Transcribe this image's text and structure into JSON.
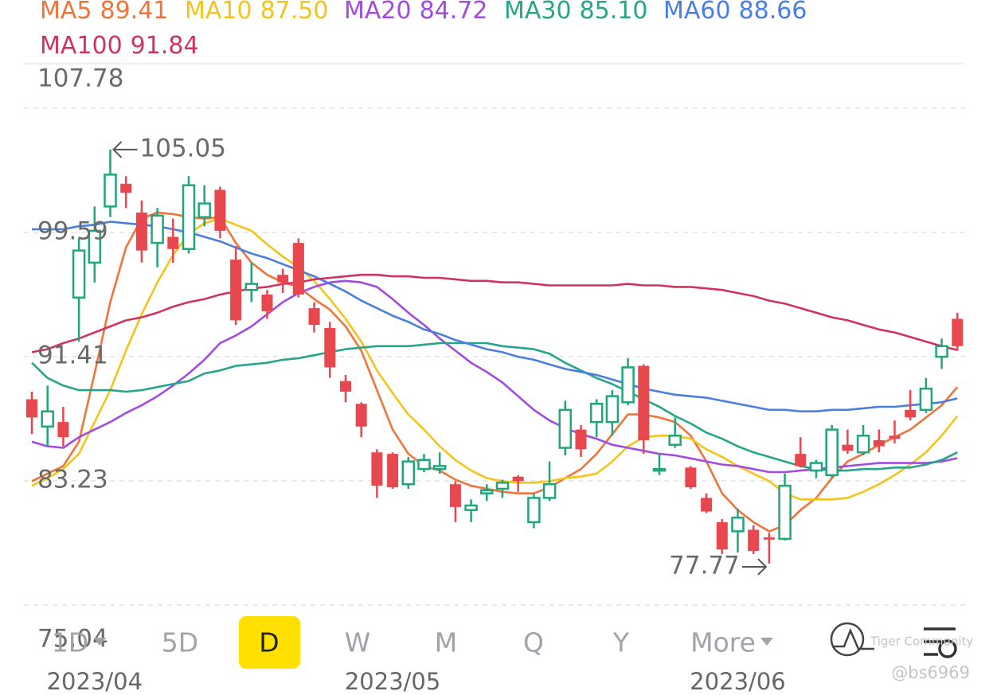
{
  "chart_data": {
    "type": "candlestick",
    "categories": [
      null,
      null,
      null,
      null,
      "2023/04",
      null,
      null,
      null,
      null,
      null,
      null,
      null,
      null,
      null,
      null,
      null,
      null,
      null,
      null,
      null,
      null,
      null,
      null,
      "2023/05",
      null,
      null,
      null,
      null,
      null,
      null,
      null,
      null,
      null,
      null,
      null,
      null,
      null,
      null,
      null,
      null,
      null,
      null,
      null,
      null,
      null,
      "2023/06",
      null,
      null,
      null,
      null,
      null,
      null,
      null,
      null,
      null,
      null,
      null,
      null,
      null,
      null
    ],
    "open": [
      88.6,
      86.8,
      87.1,
      95.3,
      97.6,
      101.3,
      102.8,
      100.9,
      98.9,
      99.3,
      98.5,
      100.6,
      102.4,
      97.8,
      95.8,
      95.5,
      96.8,
      98.9,
      94.6,
      93.3,
      89.8,
      88.3,
      85.1,
      85.0,
      83.0,
      84.0,
      84.0,
      83.0,
      81.3,
      82.4,
      82.7,
      83.5,
      80.5,
      82.1,
      85.4,
      86.6,
      87.1,
      87.1,
      88.4,
      90.8,
      83.9,
      85.6,
      84.1,
      82.1,
      80.5,
      79.9,
      80.0,
      79.5,
      79.4,
      85.0,
      83.9,
      83.6,
      85.6,
      85.1,
      85.9,
      86.2,
      87.9,
      87.9,
      91.4,
      93.9
    ],
    "high": [
      89.1,
      89.5,
      88.1,
      99.2,
      101.3,
      105.05,
      103.3,
      101.7,
      101.2,
      100.5,
      103.3,
      102.7,
      102.6,
      98.7,
      97.6,
      95.8,
      97.2,
      99.2,
      95.0,
      93.7,
      90.2,
      88.4,
      85.3,
      85.1,
      84.8,
      85.0,
      85.1,
      83.2,
      82.0,
      83.0,
      83.3,
      83.6,
      82.4,
      84.5,
      88.5,
      86.9,
      88.6,
      89.2,
      91.3,
      90.9,
      85.0,
      87.4,
      84.2,
      82.4,
      80.7,
      81.4,
      80.3,
      79.8,
      83.7,
      86.1,
      84.6,
      86.9,
      86.6,
      86.9,
      86.6,
      87.2,
      89.2,
      90.0,
      92.6,
      94.3
    ],
    "low": [
      86.3,
      85.5,
      85.5,
      92.4,
      96.3,
      100.6,
      101.2,
      97.6,
      97.3,
      97.6,
      98.2,
      100.0,
      99.2,
      93.5,
      95.0,
      93.9,
      95.6,
      95.3,
      93.0,
      90.0,
      88.4,
      86.1,
      82.1,
      82.7,
      82.7,
      83.8,
      83.7,
      80.5,
      80.5,
      81.9,
      82.1,
      82.5,
      80.1,
      81.9,
      84.9,
      84.8,
      86.1,
      86.2,
      88.2,
      85.0,
      83.6,
      85.4,
      82.7,
      81.1,
      78.4,
      78.5,
      78.4,
      77.77,
      79.3,
      84.1,
      83.4,
      83.4,
      85.0,
      84.9,
      85.1,
      85.7,
      87.2,
      87.7,
      90.6,
      91.8
    ],
    "close": [
      87.4,
      87.8,
      86.1,
      98.4,
      99.7,
      103.4,
      102.2,
      98.4,
      100.7,
      98.5,
      102.7,
      101.5,
      99.7,
      93.8,
      96.2,
      94.4,
      96.3,
      95.5,
      93.5,
      90.7,
      89.1,
      86.8,
      82.9,
      82.8,
      84.5,
      84.6,
      84.2,
      81.5,
      81.6,
      82.6,
      83.1,
      83.2,
      82.1,
      83.0,
      87.9,
      85.3,
      88.3,
      88.8,
      90.7,
      85.9,
      84.0,
      86.2,
      82.8,
      81.2,
      78.7,
      80.8,
      78.6,
      79.35,
      82.9,
      84.2,
      84.4,
      86.6,
      85.2,
      86.2,
      85.5,
      86.0,
      87.4,
      89.3,
      92.1,
      92.1
    ],
    "up_color": "#1fa67a",
    "down_color": "#e9474e",
    "series": [
      {
        "name": "MA5",
        "color": "#f0743a",
        "legend_label": "89.41",
        "values": [
          83.2,
          83.7,
          84.2,
          85.8,
          90.3,
          95.0,
          98.6,
          100.5,
          100.9,
          100.8,
          100.6,
          100.5,
          100.6,
          98.9,
          97.6,
          96.8,
          96.3,
          96.0,
          95.2,
          94.5,
          93.4,
          91.8,
          89.2,
          86.6,
          85.0,
          84.2,
          83.9,
          83.3,
          82.9,
          82.7,
          82.5,
          82.4,
          82.4,
          82.8,
          83.4,
          84.0,
          85.0,
          86.3,
          87.6,
          87.6,
          87.4,
          87.1,
          86.2,
          84.5,
          82.4,
          81.3,
          80.5,
          79.9,
          80.3,
          81.3,
          82.1,
          83.4,
          84.5,
          85.0,
          85.6,
          86.1,
          86.6,
          87.4,
          88.2,
          89.41
        ]
      },
      {
        "name": "MA10",
        "color": "#f3c41a",
        "legend_label": "87.50",
        "values": [
          82.9,
          83.4,
          84.0,
          85.0,
          87.1,
          89.2,
          91.8,
          94.2,
          96.3,
          98.1,
          99.5,
          100.2,
          100.5,
          100.1,
          99.7,
          98.8,
          98.0,
          97.3,
          96.4,
          95.2,
          93.9,
          92.4,
          90.5,
          89.0,
          87.6,
          86.6,
          85.5,
          84.6,
          83.9,
          83.4,
          83.2,
          83.1,
          83.1,
          83.2,
          83.4,
          83.5,
          83.7,
          84.5,
          85.5,
          86.1,
          86.2,
          86.2,
          86.0,
          85.3,
          84.8,
          84.2,
          83.7,
          83.2,
          82.4,
          82.0,
          82.0,
          82.0,
          82.1,
          82.5,
          83.0,
          83.6,
          84.3,
          85.1,
          86.2,
          87.5
        ]
      },
      {
        "name": "MA20",
        "color": "#a24be0",
        "legend_label": "84.72",
        "values": [
          85.8,
          85.5,
          85.4,
          86.1,
          86.6,
          87.1,
          87.7,
          88.2,
          88.8,
          89.5,
          90.3,
          91.2,
          92.3,
          92.8,
          93.4,
          94.2,
          95.0,
          95.6,
          96.0,
          96.3,
          96.4,
          96.3,
          96.0,
          95.2,
          94.3,
          93.5,
          92.6,
          91.8,
          91.0,
          90.4,
          89.7,
          88.8,
          87.9,
          87.2,
          86.7,
          86.3,
          86.0,
          85.6,
          85.4,
          85.2,
          85.0,
          84.9,
          84.7,
          84.5,
          84.3,
          84.2,
          84.0,
          83.8,
          83.8,
          83.9,
          84.0,
          84.1,
          84.2,
          84.3,
          84.4,
          84.4,
          84.4,
          84.4,
          84.5,
          84.72
        ]
      },
      {
        "name": "MA30",
        "color": "#27a58a",
        "legend_label": "85.10",
        "values": [
          91.0,
          90.0,
          89.5,
          89.2,
          89.2,
          89.2,
          89.1,
          89.2,
          89.4,
          89.6,
          89.8,
          90.3,
          90.5,
          90.8,
          90.9,
          91.0,
          91.2,
          91.3,
          91.5,
          91.7,
          91.9,
          92.0,
          92.1,
          92.1,
          92.1,
          92.2,
          92.3,
          92.3,
          92.3,
          92.3,
          92.1,
          92.0,
          91.9,
          91.6,
          91.0,
          90.5,
          90.0,
          89.6,
          89.1,
          88.6,
          88.1,
          87.5,
          87.0,
          86.4,
          86.0,
          85.5,
          85.1,
          84.8,
          84.5,
          84.2,
          84.0,
          83.9,
          83.9,
          84.0,
          84.0,
          84.1,
          84.1,
          84.3,
          84.6,
          85.1
        ]
      },
      {
        "name": "MA60",
        "color": "#4a7fe0",
        "legend_label": "88.66",
        "values": [
          99.8,
          99.8,
          99.8,
          100.0,
          100.1,
          100.3,
          100.2,
          100.1,
          100.0,
          99.8,
          99.6,
          99.3,
          99.0,
          98.6,
          98.2,
          97.9,
          97.5,
          97.1,
          96.7,
          96.2,
          95.7,
          95.1,
          94.6,
          94.1,
          93.7,
          93.2,
          92.9,
          92.5,
          92.2,
          91.9,
          91.7,
          91.4,
          91.2,
          90.9,
          90.6,
          90.4,
          90.2,
          89.9,
          89.6,
          89.3,
          89.1,
          88.9,
          88.8,
          88.7,
          88.5,
          88.3,
          88.1,
          87.9,
          87.9,
          87.8,
          87.8,
          87.9,
          87.9,
          88.0,
          88.1,
          88.1,
          88.2,
          88.3,
          88.4,
          88.66
        ]
      },
      {
        "name": "MA100",
        "color": "#cf3460",
        "legend_label": "91.84",
        "values": [
          91.7,
          91.9,
          92.3,
          92.6,
          93.0,
          93.4,
          93.8,
          94.0,
          94.3,
          94.7,
          95.0,
          95.2,
          95.5,
          95.7,
          95.9,
          96.0,
          96.2,
          96.3,
          96.5,
          96.6,
          96.7,
          96.8,
          96.8,
          96.7,
          96.7,
          96.6,
          96.6,
          96.5,
          96.4,
          96.4,
          96.3,
          96.3,
          96.2,
          96.1,
          96.1,
          96.1,
          96.1,
          96.1,
          96.2,
          96.1,
          96.1,
          96.0,
          96.0,
          95.9,
          95.8,
          95.6,
          95.4,
          95.1,
          94.9,
          94.6,
          94.3,
          94.0,
          93.8,
          93.5,
          93.2,
          93.0,
          92.7,
          92.4,
          92.1,
          91.84
        ]
      }
    ],
    "ylim": [
      75.04,
      110.71
    ],
    "yticks": [
      107.78,
      99.59,
      91.41,
      83.23,
      75.04
    ],
    "grid": true
  },
  "ui": {
    "tabs": [
      "1D",
      "5D",
      "D",
      "W",
      "M",
      "Q",
      "Y",
      "More"
    ],
    "selected_tab": "D",
    "watermark": "Tiger Community",
    "user": "@bs6969"
  }
}
